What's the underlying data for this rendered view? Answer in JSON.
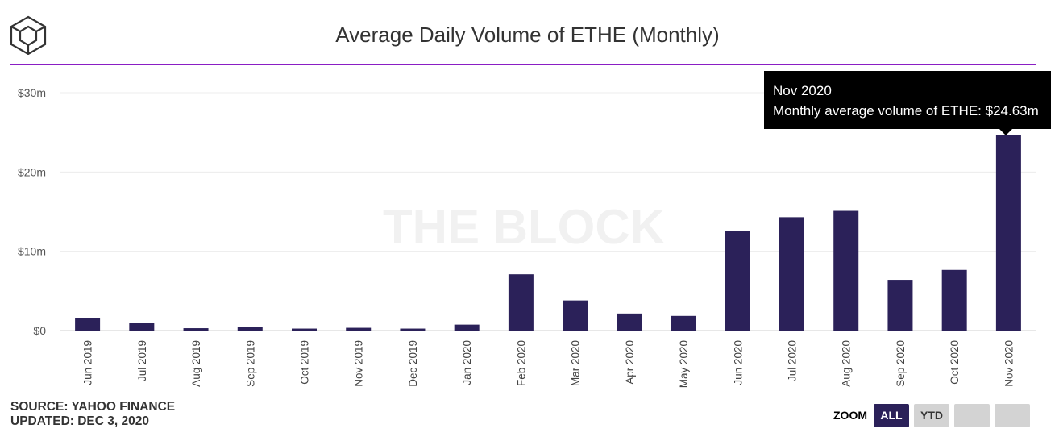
{
  "header": {
    "title": "Average Daily Volume of ETHE (Monthly)",
    "logo_icon": "the-block-cube-icon",
    "accent_color": "#8a1ec4"
  },
  "watermark": "THE BLOCK",
  "tooltip": {
    "title": "Nov 2020",
    "body": "Monthly average volume of ETHE: $24.63m"
  },
  "footer": {
    "source": "SOURCE: YAHOO FINANCE",
    "updated": "UPDATED: DEC 3, 2020"
  },
  "zoom": {
    "label": "ZOOM",
    "buttons": [
      "ALL",
      "YTD",
      "",
      ""
    ],
    "active": "ALL"
  },
  "chart_data": {
    "type": "bar",
    "title": "Average Daily Volume of ETHE (Monthly)",
    "xlabel": "",
    "ylabel": "",
    "categories": [
      "Jun 2019",
      "Jul 2019",
      "Aug 2019",
      "Sep 2019",
      "Oct 2019",
      "Nov 2019",
      "Dec 2019",
      "Jan 2020",
      "Feb 2020",
      "Mar 2020",
      "Apr 2020",
      "May 2020",
      "Jun 2020",
      "Jul 2020",
      "Aug 2020",
      "Sep 2020",
      "Oct 2020",
      "Nov 2020"
    ],
    "series": [
      {
        "values": [
          1.6,
          1.0,
          0.3,
          0.5,
          0.25,
          0.35,
          0.25,
          0.75,
          7.1,
          3.8,
          2.15,
          1.85,
          12.6,
          14.3,
          15.1,
          6.4,
          7.65,
          24.63
        ],
        "color": "#2b2159"
      }
    ],
    "ylim": [
      0,
      30
    ],
    "yticks": [
      0,
      10,
      20,
      30
    ],
    "ytick_labels": [
      "$0",
      "$10m",
      "$20m",
      "$30m"
    ],
    "grid": true,
    "legend": "none",
    "highlighted": "Nov 2020"
  }
}
